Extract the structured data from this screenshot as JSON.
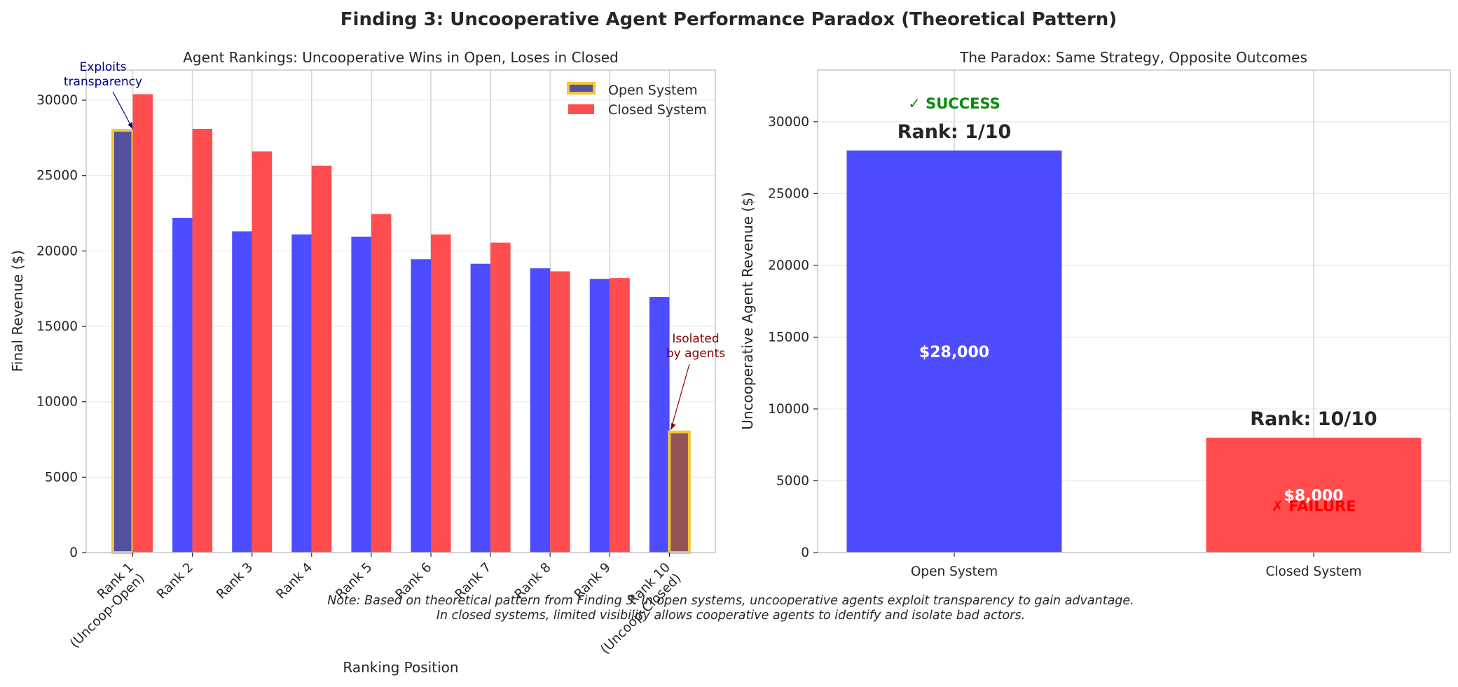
{
  "title": "Finding 3: Uncooperative Agent Performance Paradox (Theoretical Pattern)",
  "colors": {
    "open": "#4646ff",
    "closed": "#ff4649",
    "highlight_edge": "#f2c53a",
    "highlight_fill_open": "#51519e",
    "highlight_fill_closed": "#915354",
    "annot_left": "#00007f",
    "annot_right": "#8b0000",
    "success": "#0a8a0a",
    "failure": "#ff0000"
  },
  "chart_data": [
    {
      "type": "bar",
      "title": "Agent Rankings: Uncooperative Wins in Open, Loses in Closed",
      "xlabel": "Ranking Position",
      "ylabel": "Final Revenue ($)",
      "ylim": [
        0,
        32000
      ],
      "yticks": [
        0,
        5000,
        10000,
        15000,
        20000,
        25000,
        30000
      ],
      "grid": true,
      "legend_position": "top-right",
      "categories": [
        "Rank 1\n(Uncoop-Open)",
        "Rank 2",
        "Rank 3",
        "Rank 4",
        "Rank 5",
        "Rank 6",
        "Rank 7",
        "Rank 8",
        "Rank 9",
        "Rank 10\n(Uncoop-Closed)"
      ],
      "series": [
        {
          "name": "Open System",
          "values": [
            28000,
            22200,
            21300,
            21100,
            20950,
            19450,
            19150,
            18850,
            18150,
            16950
          ],
          "highlight_index": 0
        },
        {
          "name": "Closed System",
          "values": [
            30400,
            28100,
            26600,
            25650,
            22450,
            21100,
            20550,
            18650,
            18200,
            8000
          ],
          "highlight_index": 9
        }
      ],
      "annotations": [
        {
          "text": "Exploits\ntransparency",
          "series": 0,
          "index": 0
        },
        {
          "text": "Isolated\nby agents",
          "series": 1,
          "index": 9
        }
      ]
    },
    {
      "type": "bar",
      "title": "The Paradox: Same Strategy, Opposite Outcomes",
      "xlabel": "",
      "ylabel": "Uncooperative Agent Revenue ($)",
      "ylim": [
        0,
        33600
      ],
      "yticks": [
        0,
        5000,
        10000,
        15000,
        20000,
        25000,
        30000
      ],
      "grid": true,
      "categories": [
        "Open System",
        "Closed System"
      ],
      "values": [
        28000,
        8000
      ],
      "value_labels": [
        "$28,000",
        "$8,000"
      ],
      "rank_labels": [
        "Rank: 1/10",
        "Rank: 10/10"
      ],
      "status_labels": [
        "✓ SUCCESS",
        "✗ FAILURE"
      ]
    }
  ],
  "note": {
    "line1": "Note: Based on theoretical pattern from Finding 3. In open systems, uncooperative agents exploit transparency to gain advantage.",
    "line2": "In closed systems, limited visibility allows cooperative agents to identify and isolate bad actors."
  }
}
